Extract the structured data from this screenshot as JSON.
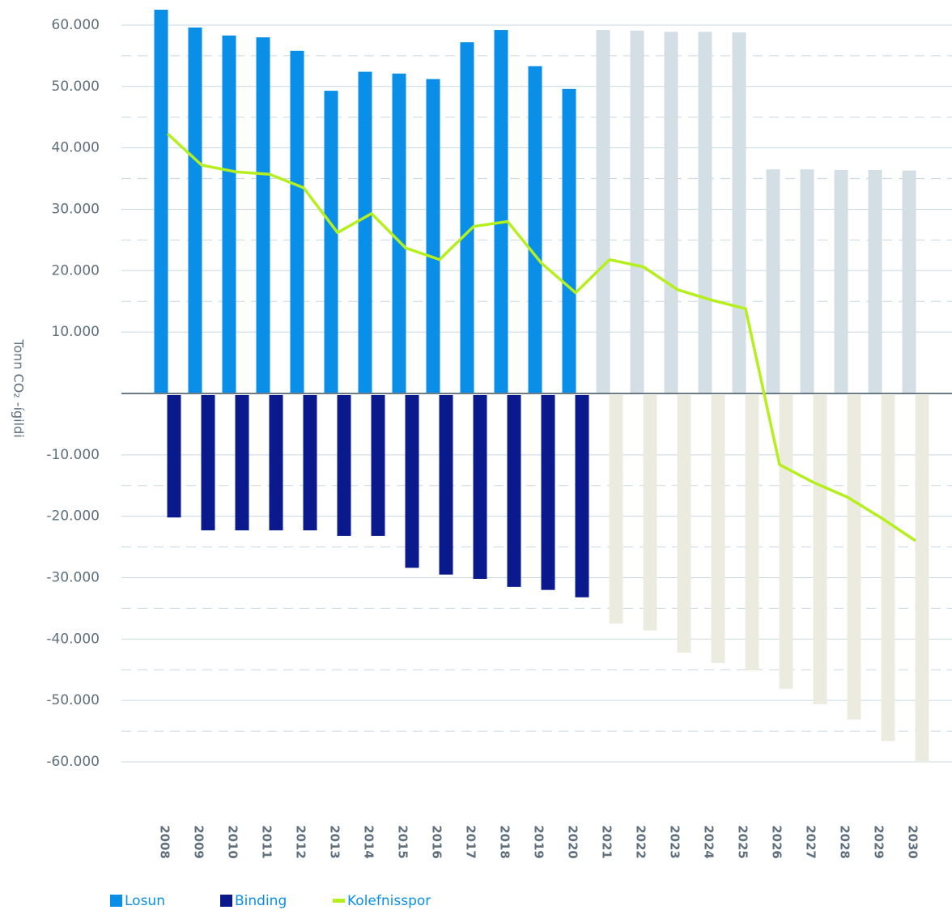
{
  "chart_data": {
    "type": "bar_line",
    "y_label": "Tonn CO₂ -ígildi",
    "categories": [
      "2008",
      "2009",
      "2010",
      "2011",
      "2012",
      "2013",
      "2014",
      "2015",
      "2016",
      "2017",
      "2018",
      "2019",
      "2020",
      "2021",
      "2022",
      "2023",
      "2024",
      "2025",
      "2026",
      "2027",
      "2028",
      "2029",
      "2030"
    ],
    "projection_start": "2021",
    "series": [
      {
        "name": "Losun",
        "kind": "bar",
        "color": "#0a8fe8",
        "projection_color": "#d3dfe5",
        "values": [
          62500,
          59600,
          58300,
          58000,
          55800,
          49300,
          52400,
          52100,
          51200,
          57200,
          59200,
          53300,
          49600,
          59200,
          59100,
          58900,
          58900,
          58800,
          36500,
          36500,
          36400,
          36400,
          36300
        ]
      },
      {
        "name": "Binding",
        "kind": "bar",
        "color": "#0a1a8c",
        "projection_color": "#ecebe0",
        "values": [
          -20200,
          -22300,
          -22300,
          -22300,
          -22300,
          -23200,
          -23200,
          -28400,
          -29500,
          -30200,
          -31500,
          -32000,
          -33200,
          -37500,
          -38600,
          -42200,
          -43900,
          -45100,
          -48100,
          -50600,
          -53100,
          -56600,
          -60000
        ]
      },
      {
        "name": "Kolefnisspor",
        "kind": "line",
        "color": "#b5f01e",
        "values": [
          42300,
          37200,
          36100,
          35700,
          33500,
          26200,
          29300,
          23700,
          21800,
          27200,
          28000,
          21200,
          16400,
          21800,
          20600,
          16900,
          15200,
          13800,
          -11600,
          -14500,
          -16900,
          -20300,
          -24000
        ]
      }
    ],
    "ylim": [
      -60000,
      62500
    ],
    "yticks": [
      {
        "value": 60000,
        "label": "60.000"
      },
      {
        "value": 50000,
        "label": "50.000"
      },
      {
        "value": 40000,
        "label": "40.000"
      },
      {
        "value": 30000,
        "label": "30.000"
      },
      {
        "value": 20000,
        "label": "20.000"
      },
      {
        "value": 10000,
        "label": "10.000"
      },
      {
        "value": -10000,
        "label": "-10.000"
      },
      {
        "value": -20000,
        "label": "-20.000"
      },
      {
        "value": -30000,
        "label": "-30.000"
      },
      {
        "value": -40000,
        "label": "-40.000"
      },
      {
        "value": -50000,
        "label": "-50.000"
      },
      {
        "value": -60000,
        "label": "-60.000"
      }
    ],
    "grid": true
  }
}
